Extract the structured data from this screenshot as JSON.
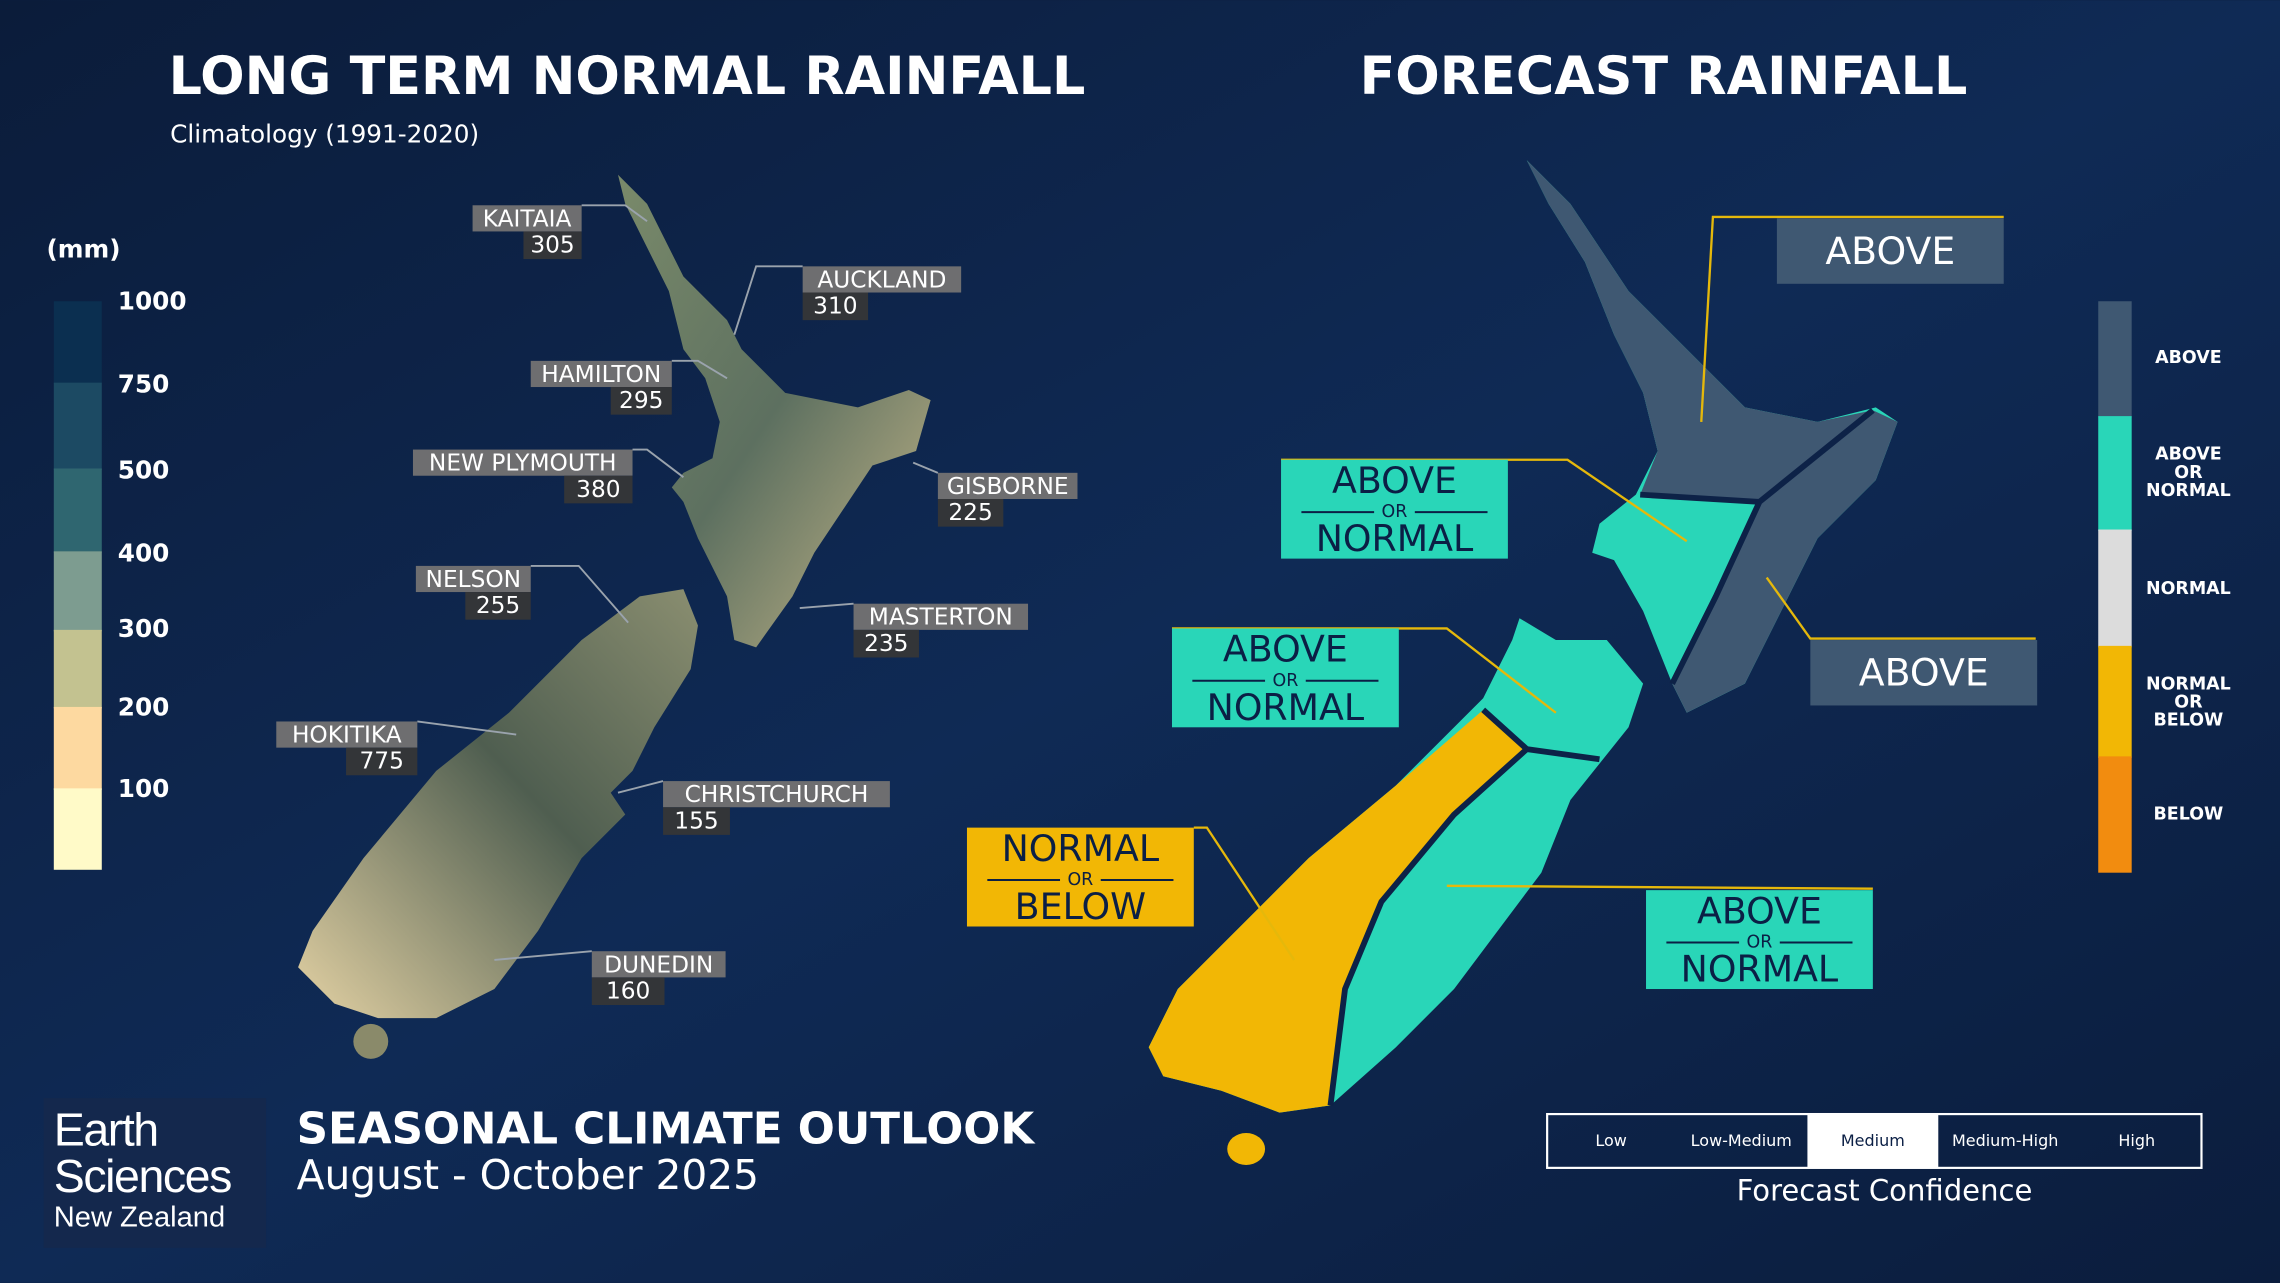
{
  "left_panel": {
    "title": "LONG TERM NORMAL RAINFALL",
    "subtitle": "Climatology (1991-2020)",
    "legend": {
      "unit": "(mm)",
      "ticks": [
        1000,
        750,
        500,
        400,
        300,
        200,
        100
      ]
    },
    "stations": [
      {
        "name": "KAITAIA",
        "value": 305
      },
      {
        "name": "AUCKLAND",
        "value": 310
      },
      {
        "name": "HAMILTON",
        "value": 295
      },
      {
        "name": "NEW PLYMOUTH",
        "value": 380
      },
      {
        "name": "GISBORNE",
        "value": 225
      },
      {
        "name": "NELSON",
        "value": 255
      },
      {
        "name": "MASTERTON",
        "value": 235
      },
      {
        "name": "HOKITIKA",
        "value": 775
      },
      {
        "name": "CHRISTCHURCH",
        "value": 155
      },
      {
        "name": "DUNEDIN",
        "value": 160
      }
    ]
  },
  "right_panel": {
    "title": "FORECAST RAINFALL",
    "regions": [
      {
        "lines": [
          "ABOVE"
        ]
      },
      {
        "lines": [
          "ABOVE",
          "OR",
          "NORMAL"
        ]
      },
      {
        "lines": [
          "ABOVE"
        ]
      },
      {
        "lines": [
          "ABOVE",
          "OR",
          "NORMAL"
        ]
      },
      {
        "lines": [
          "NORMAL",
          "OR",
          "BELOW"
        ]
      },
      {
        "lines": [
          "ABOVE",
          "OR",
          "NORMAL"
        ]
      }
    ],
    "legend": [
      {
        "lines": [
          "ABOVE"
        ]
      },
      {
        "lines": [
          "ABOVE",
          "OR",
          "NORMAL"
        ]
      },
      {
        "lines": [
          "NORMAL"
        ]
      },
      {
        "lines": [
          "NORMAL",
          "OR",
          "BELOW"
        ]
      },
      {
        "lines": [
          "BELOW"
        ]
      }
    ]
  },
  "footer": {
    "logo": [
      "Earth",
      "Sciences",
      "New Zealand"
    ],
    "title": "SEASONAL CLIMATE OUTLOOK",
    "period": "August - October 2025",
    "confidence": {
      "levels": [
        "Low",
        "Low-Medium",
        "Medium",
        "Medium-High",
        "High"
      ],
      "highlighted": 2,
      "caption": "Forecast Confidence"
    }
  }
}
